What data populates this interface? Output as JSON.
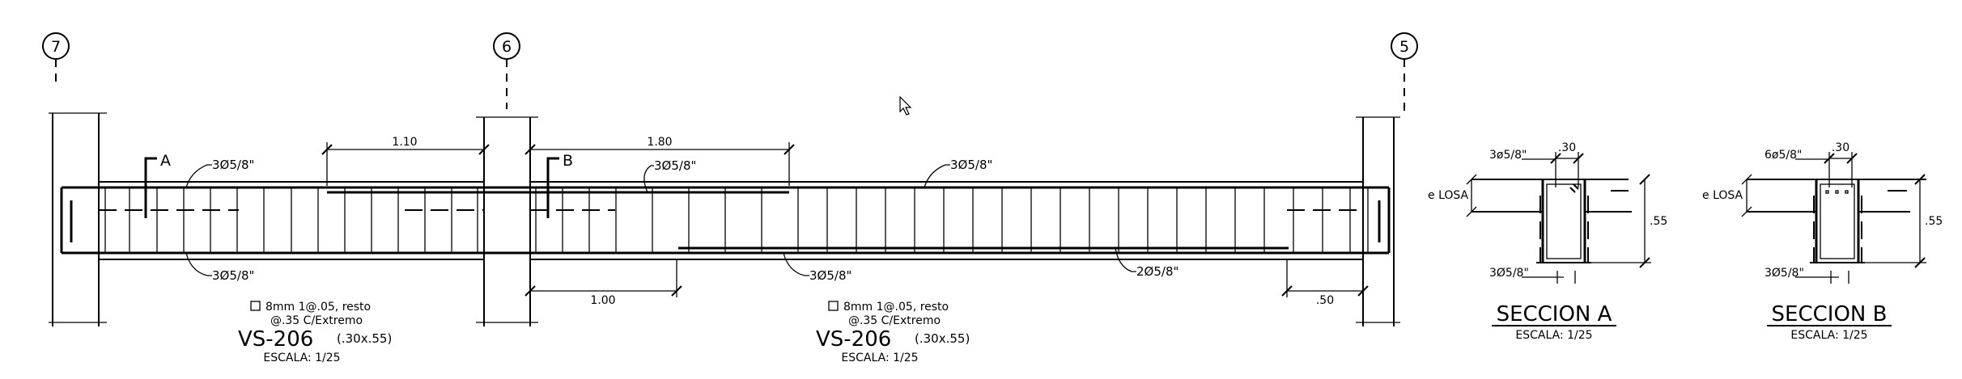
{
  "axes": [
    "7",
    "6",
    "5"
  ],
  "beam_spans": [
    {
      "section_a_mark": "A",
      "top_bar": "3Ø5/8\"",
      "bottom_bar": "3Ø5/8\"",
      "dim_top": "1.10",
      "stirrup_line1": "8mm  1@.05,  resto",
      "stirrup_line2": "@.35  C/Extremo",
      "beam_name": "VS-206",
      "beam_size": "(.30x.55)",
      "scale": "ESCALA:  1/25"
    },
    {
      "section_b_mark": "B",
      "dim_top": "1.80",
      "top_bar_left": "3Ø5/8\"",
      "top_bar_right": "3Ø5/8\"",
      "bottom_bar": "3Ø5/8\"",
      "extra_bar": "2Ø5/8\"",
      "dim_bottom_left": "1.00",
      "dim_bottom_right": ".50",
      "stirrup_line1": "8mm  1@.05,  resto",
      "stirrup_line2": "@.35  C/Extremo",
      "beam_name": "VS-206",
      "beam_size": "(.30x.55)",
      "scale": "ESCALA:  1/25"
    }
  ],
  "sections": [
    {
      "title": "SECCION A",
      "scale": "ESCALA:  1/25",
      "width_dim": ".30",
      "height_dim": ".55",
      "top_bars": "3ø5/8\"",
      "bottom_bars": "3Ø5/8\"",
      "slab_label": "e  LOSA"
    },
    {
      "title": "SECCION B",
      "scale": "ESCALA:  1/25",
      "width_dim": ".30",
      "height_dim": ".55",
      "top_bars": "6ø5/8\"",
      "bottom_bars": "3Ø5/8\"",
      "slab_label": "e  LOSA"
    }
  ]
}
